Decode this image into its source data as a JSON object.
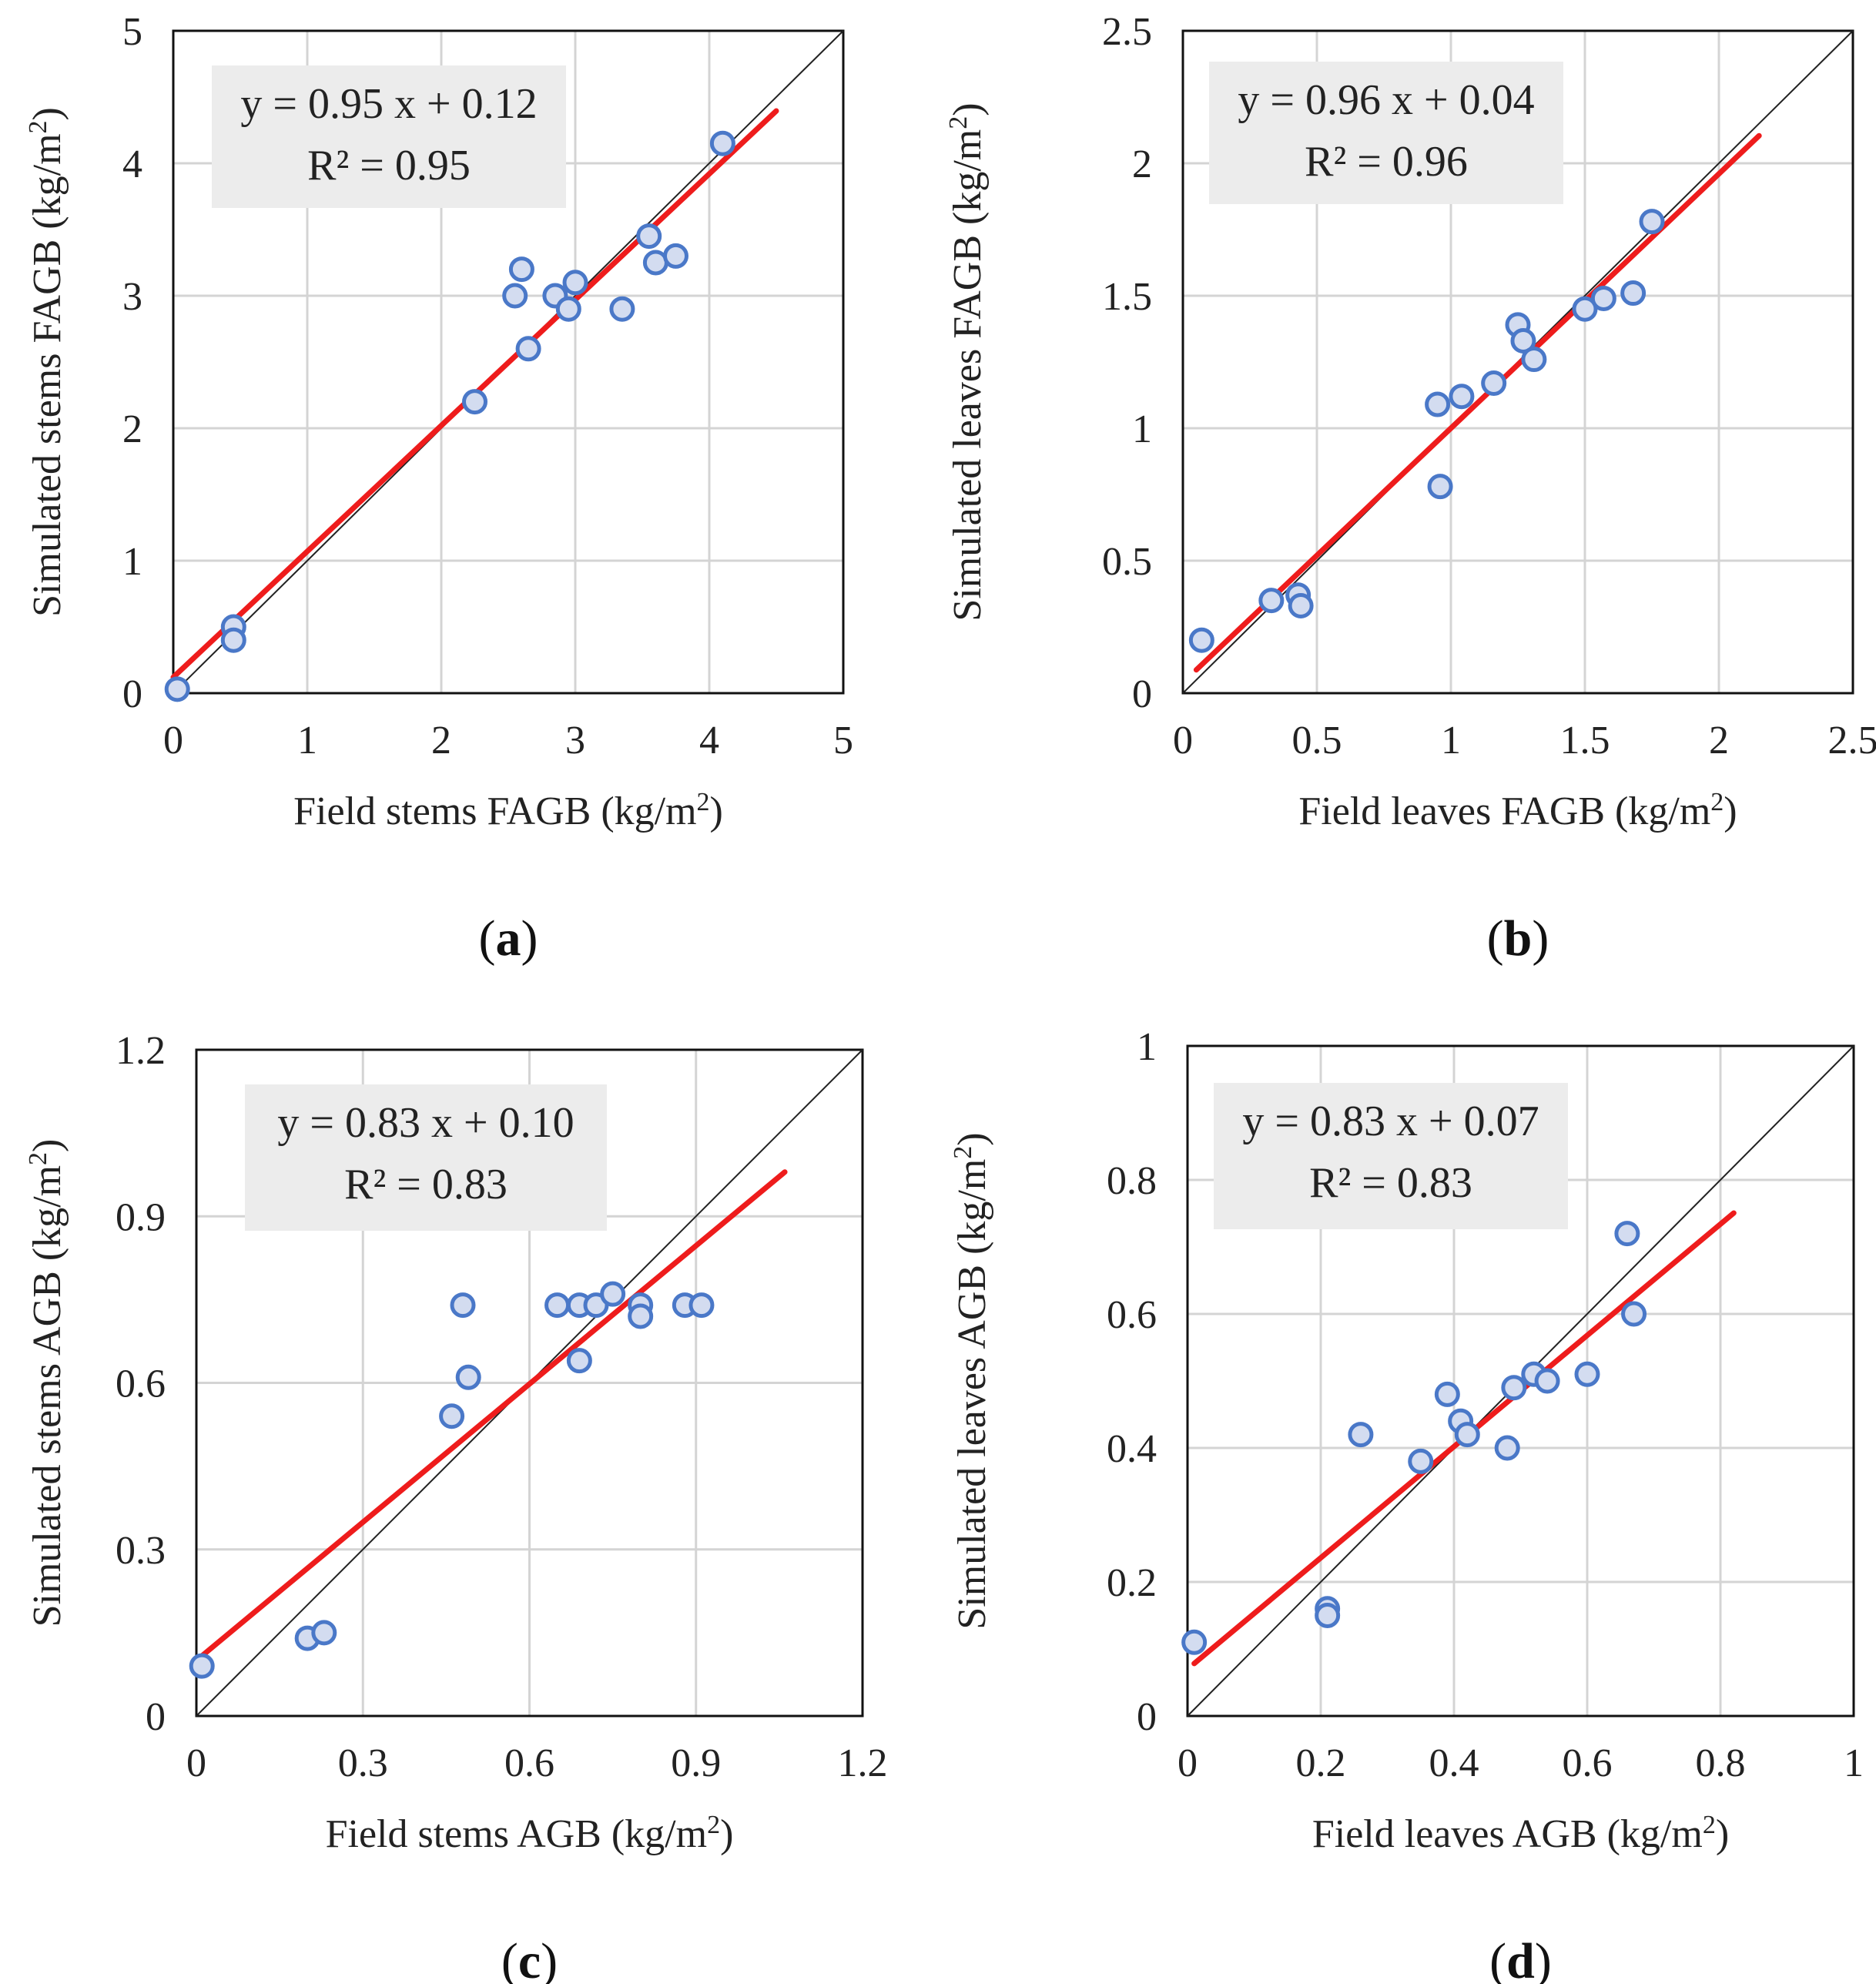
{
  "colors": {
    "point": "#4a78c8",
    "point_fill": "#d3dcf0",
    "fit": "#ee1c1c",
    "identity": "#222222",
    "grid": "#d4d4d4",
    "eq_box": "#ececec"
  },
  "chart_data": [
    {
      "type": "scatter",
      "panel": "a",
      "panel_label": "a",
      "xlabel": "Field stems FAGB (kg/m",
      "ylabel": "Simulated stems FAGB (kg/m",
      "unit_sup": "2",
      "unit_close": ")",
      "xlim": [
        0,
        5
      ],
      "ylim": [
        0,
        5
      ],
      "xticks": [
        0,
        1,
        2,
        3,
        4,
        5
      ],
      "yticks": [
        0,
        1,
        2,
        3,
        4,
        5
      ],
      "xtick_labels": [
        "0",
        "1",
        "2",
        "3",
        "4",
        "5"
      ],
      "ytick_labels": [
        "0",
        "1",
        "2",
        "3",
        "4",
        "5"
      ],
      "equation": "y = 0.95 x + 0.12",
      "r2": "R² = 0.95",
      "fit": {
        "slope": 0.95,
        "intercept": 0.12,
        "x_range": [
          0,
          4.5
        ]
      },
      "points": {
        "x": [
          0.03,
          0.45,
          0.45,
          2.25,
          2.55,
          2.6,
          2.65,
          2.85,
          2.95,
          3.0,
          3.35,
          3.55,
          3.6,
          3.75,
          4.1
        ],
        "y": [
          0.03,
          0.5,
          0.4,
          2.2,
          3.0,
          3.2,
          2.6,
          3.0,
          2.9,
          3.1,
          2.9,
          3.45,
          3.25,
          3.3,
          4.15
        ]
      }
    },
    {
      "type": "scatter",
      "panel": "b",
      "panel_label": "b",
      "xlabel": "Field leaves FAGB (kg/m",
      "ylabel": "Simulated leaves FAGB (kg/m",
      "unit_sup": "2",
      "unit_close": ")",
      "xlim": [
        0,
        2.5
      ],
      "ylim": [
        0,
        2.5
      ],
      "xticks": [
        0,
        0.5,
        1,
        1.5,
        2,
        2.5
      ],
      "yticks": [
        0,
        0.5,
        1,
        1.5,
        2,
        2.5
      ],
      "xtick_labels": [
        "0",
        "0.5",
        "1",
        "1.5",
        "2",
        "2.5"
      ],
      "ytick_labels": [
        "0",
        "0.5",
        "1",
        "1.5",
        "2",
        "2.5"
      ],
      "equation": "y = 0.96 x + 0.04",
      "r2": "R² = 0.96",
      "fit": {
        "slope": 0.96,
        "intercept": 0.04,
        "x_range": [
          0.05,
          2.15
        ]
      },
      "points": {
        "x": [
          0.07,
          0.33,
          0.43,
          0.44,
          0.95,
          0.96,
          1.04,
          1.16,
          1.25,
          1.27,
          1.31,
          1.5,
          1.57,
          1.68,
          1.75
        ],
        "y": [
          0.2,
          0.35,
          0.37,
          0.33,
          1.09,
          0.78,
          1.12,
          1.17,
          1.39,
          1.33,
          1.26,
          1.45,
          1.49,
          1.51,
          1.78
        ]
      }
    },
    {
      "type": "scatter",
      "panel": "c",
      "panel_label": "c",
      "xlabel": "Field stems AGB (kg/m",
      "ylabel": "Simulated stems AGB (kg/m",
      "unit_sup": "2",
      "unit_close": ")",
      "xlim": [
        0,
        1.2
      ],
      "ylim": [
        0,
        1.2
      ],
      "xticks": [
        0,
        0.3,
        0.6,
        0.9,
        1.2
      ],
      "yticks": [
        0,
        0.3,
        0.6,
        0.9,
        1.2
      ],
      "xtick_labels": [
        "0",
        "0.3",
        "0.6",
        "0.9",
        "1.2"
      ],
      "ytick_labels": [
        "0",
        "0.3",
        "0.6",
        "0.9",
        "1.2"
      ],
      "equation": "y = 0.83 x + 0.10",
      "r2": "R² = 0.83",
      "fit": {
        "slope": 0.83,
        "intercept": 0.1,
        "x_range": [
          0,
          1.06
        ]
      },
      "points": {
        "x": [
          0.01,
          0.2,
          0.23,
          0.46,
          0.48,
          0.49,
          0.65,
          0.69,
          0.69,
          0.72,
          0.75,
          0.8,
          0.8,
          0.88,
          0.91
        ],
        "y": [
          0.09,
          0.14,
          0.15,
          0.54,
          0.74,
          0.61,
          0.74,
          0.74,
          0.64,
          0.74,
          0.76,
          0.74,
          0.72,
          0.74,
          0.74
        ]
      }
    },
    {
      "type": "scatter",
      "panel": "d",
      "panel_label": "d",
      "xlabel": "Field leaves AGB (kg/m",
      "ylabel": "Simulated leaves AGB (kg/m",
      "unit_sup": "2",
      "unit_close": ")",
      "xlim": [
        0,
        1
      ],
      "ylim": [
        0,
        1
      ],
      "xticks": [
        0,
        0.2,
        0.4,
        0.6,
        0.8,
        1
      ],
      "yticks": [
        0,
        0.2,
        0.4,
        0.6,
        0.8,
        1
      ],
      "xtick_labels": [
        "0",
        "0.2",
        "0.4",
        "0.6",
        "0.8",
        "1"
      ],
      "ytick_labels": [
        "0",
        "0.2",
        "0.4",
        "0.6",
        "0.8",
        "1"
      ],
      "equation": "y = 0.83 x + 0.07",
      "r2": "R² = 0.83",
      "fit": {
        "slope": 0.83,
        "intercept": 0.07,
        "x_range": [
          0.01,
          0.82
        ]
      },
      "points": {
        "x": [
          0.01,
          0.21,
          0.21,
          0.26,
          0.35,
          0.39,
          0.41,
          0.42,
          0.48,
          0.49,
          0.52,
          0.54,
          0.6,
          0.66,
          0.67
        ],
        "y": [
          0.11,
          0.16,
          0.15,
          0.42,
          0.38,
          0.48,
          0.44,
          0.42,
          0.4,
          0.49,
          0.51,
          0.5,
          0.51,
          0.72,
          0.6
        ]
      }
    }
  ]
}
